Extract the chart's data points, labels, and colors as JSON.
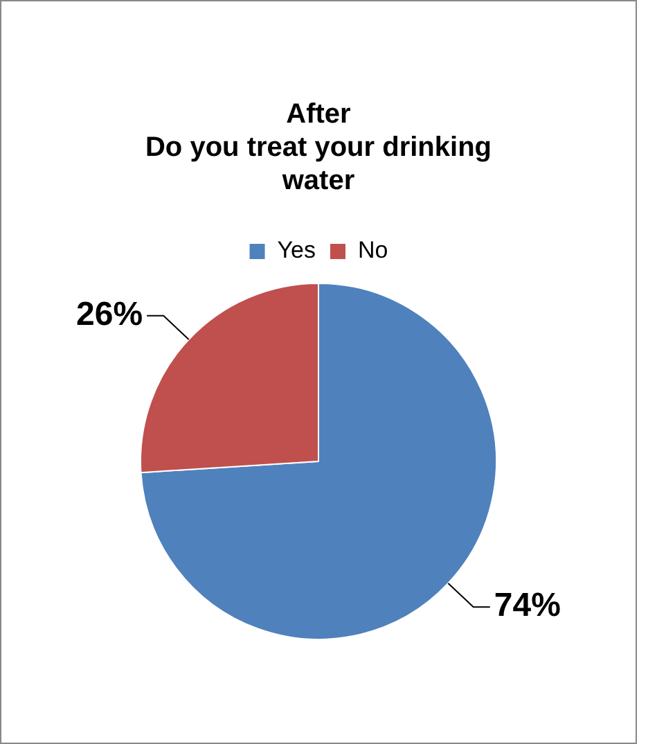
{
  "chart_data": {
    "type": "pie",
    "title": "After\nDo you treat your drinking\nwater",
    "categories": [
      "Yes",
      "No"
    ],
    "values": [
      74,
      26
    ],
    "colors": [
      "#4f81bd",
      "#c0504d"
    ],
    "value_labels": [
      "74%",
      "26%"
    ],
    "legend": "top"
  }
}
